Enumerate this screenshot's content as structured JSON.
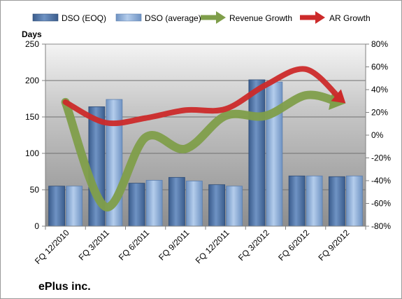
{
  "company": "ePlus inc.",
  "colors": {
    "dso_eoq": "#4a6e9f",
    "dso_avg": "#86a7d1",
    "revenue_growth": "#7f9e4a",
    "ar_growth": "#cc2a2a"
  },
  "chart_data": {
    "type": "bar",
    "categories": [
      "FQ 12/2010",
      "FQ 3/2011",
      "FQ 6/2011",
      "FQ 9/2011",
      "FQ 12/2011",
      "FQ 3/2012",
      "FQ 6/2012",
      "FQ 9/2012"
    ],
    "series": [
      {
        "name": "DSO (EOQ)",
        "type": "bar",
        "axis": "left",
        "values": [
          55,
          164,
          59,
          67,
          57,
          201,
          69,
          68
        ]
      },
      {
        "name": "DSO (average)",
        "type": "bar",
        "axis": "left",
        "values": [
          55,
          174,
          63,
          62,
          55,
          198,
          69,
          69
        ]
      },
      {
        "name": "Revenue Growth",
        "type": "line",
        "axis": "right",
        "values": [
          0.29,
          -0.63,
          -0.02,
          -0.12,
          0.17,
          0.17,
          0.35,
          0.28
        ]
      },
      {
        "name": "AR Growth",
        "type": "line",
        "axis": "right",
        "values": [
          0.29,
          0.11,
          0.15,
          0.22,
          0.23,
          0.44,
          0.58,
          0.28
        ]
      }
    ],
    "ylabel": "Days",
    "ylim": [
      0,
      250
    ],
    "yticks": [
      "0",
      "50",
      "100",
      "150",
      "200",
      "250"
    ],
    "y2lim": [
      -0.8,
      0.8
    ],
    "y2ticks": [
      "-80%",
      "-60%",
      "-40%",
      "-20%",
      "0%",
      "20%",
      "40%",
      "60%",
      "80%"
    ],
    "legend": "top",
    "grid": true
  }
}
